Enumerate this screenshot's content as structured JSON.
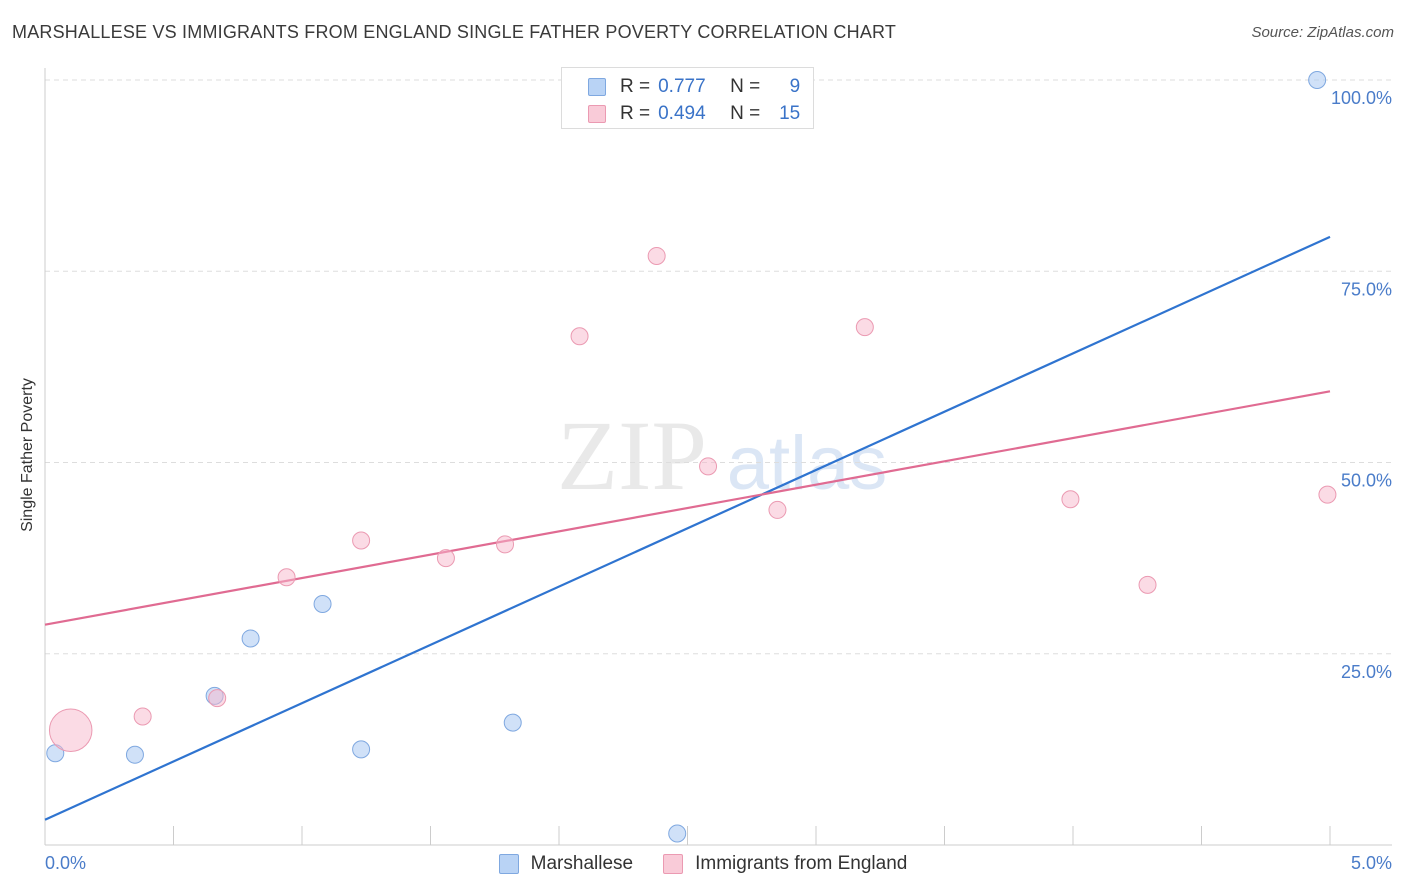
{
  "header": {
    "title": "MARSHALLESE VS IMMIGRANTS FROM ENGLAND SINGLE FATHER POVERTY CORRELATION CHART",
    "source": "Source: ZipAtlas.com"
  },
  "watermark": {
    "zip": "ZIP",
    "atlas": "atlas"
  },
  "legend_top": {
    "rows": [
      {
        "r_label": "R =",
        "r_value": "0.777",
        "n_label": "N =",
        "n_value": "9"
      },
      {
        "r_label": "R =",
        "r_value": "0.494",
        "n_label": "N =",
        "n_value": "15"
      }
    ]
  },
  "colors": {
    "blue_fill": "#a9c8f3",
    "blue_stroke": "#7fa8e0",
    "blue_line": "#2f74d0",
    "pink_fill": "#f7b8cb",
    "pink_stroke": "#eb9ab2",
    "pink_line": "#e06b92",
    "tick_text": "#4a7cc9",
    "grid": "#dddddd"
  },
  "chart_data": {
    "type": "scatter",
    "title": "MARSHALLESE VS IMMIGRANTS FROM ENGLAND SINGLE FATHER POVERTY CORRELATION CHART",
    "xlabel": "",
    "ylabel": "Single Father Poverty",
    "xlim": [
      0,
      5
    ],
    "ylim": [
      0,
      100
    ],
    "x_tick_labels": [
      "0.0%",
      "5.0%"
    ],
    "y_ticks": [
      {
        "value": 25,
        "label": "25.0%"
      },
      {
        "value": 50,
        "label": "50.0%"
      },
      {
        "value": 75,
        "label": "75.0%"
      },
      {
        "value": 100,
        "label": "100.0%"
      }
    ],
    "grid": true,
    "legend_position": "bottom-center",
    "series": [
      {
        "name": "Marshallese",
        "color": "blue",
        "points": [
          {
            "x": 0.04,
            "y": 12,
            "size": 1
          },
          {
            "x": 0.35,
            "y": 11.8,
            "size": 1
          },
          {
            "x": 0.66,
            "y": 19.5,
            "size": 1
          },
          {
            "x": 0.8,
            "y": 27,
            "size": 1
          },
          {
            "x": 1.08,
            "y": 31.5,
            "size": 1
          },
          {
            "x": 1.23,
            "y": 12.5,
            "size": 1
          },
          {
            "x": 1.82,
            "y": 16,
            "size": 1
          },
          {
            "x": 2.46,
            "y": 1.5,
            "size": 1
          },
          {
            "x": 4.95,
            "y": 100,
            "size": 1
          }
        ],
        "trend": {
          "x": [
            0,
            5
          ],
          "y": [
            3.3,
            79.5
          ]
        },
        "stats": {
          "R": 0.777,
          "N": 9
        }
      },
      {
        "name": "Immigrants from England",
        "color": "pink",
        "points": [
          {
            "x": 0.1,
            "y": 15,
            "size": 2.5
          },
          {
            "x": 0.38,
            "y": 16.8,
            "size": 1
          },
          {
            "x": 0.67,
            "y": 19.2,
            "size": 1
          },
          {
            "x": 0.94,
            "y": 35,
            "size": 1
          },
          {
            "x": 1.23,
            "y": 39.8,
            "size": 1
          },
          {
            "x": 1.56,
            "y": 37.5,
            "size": 1
          },
          {
            "x": 1.79,
            "y": 39.3,
            "size": 1
          },
          {
            "x": 2.08,
            "y": 66.5,
            "size": 1
          },
          {
            "x": 2.38,
            "y": 77,
            "size": 1
          },
          {
            "x": 2.58,
            "y": 49.5,
            "size": 1
          },
          {
            "x": 2.85,
            "y": 43.8,
            "size": 1
          },
          {
            "x": 3.19,
            "y": 67.7,
            "size": 1
          },
          {
            "x": 3.99,
            "y": 45.2,
            "size": 1
          },
          {
            "x": 4.29,
            "y": 34,
            "size": 1
          },
          {
            "x": 4.99,
            "y": 45.8,
            "size": 1
          }
        ],
        "trend": {
          "x": [
            0,
            5
          ],
          "y": [
            28.8,
            59.3
          ]
        },
        "stats": {
          "R": 0.494,
          "N": 15
        }
      }
    ]
  }
}
